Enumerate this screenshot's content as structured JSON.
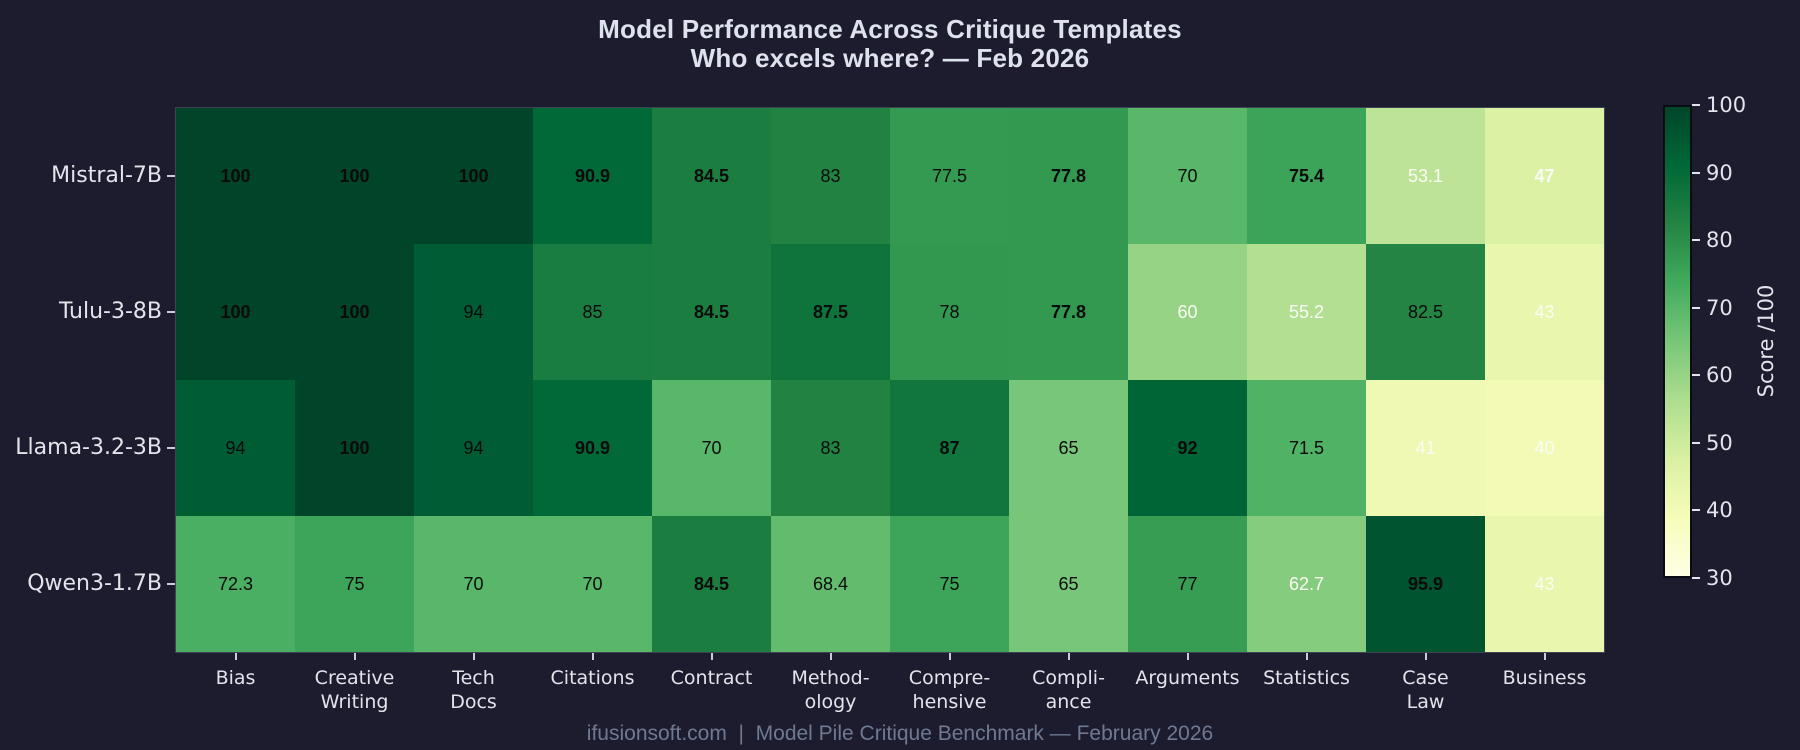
{
  "title": {
    "line1": "Model Performance Across Critique Templates",
    "line2": "Who excels where? — Feb 2026"
  },
  "footer": "ifusionsoft.com  |  Model Pile Critique Benchmark — February 2026",
  "chart_data": {
    "type": "heatmap",
    "title": "Model Performance Across Critique Templates",
    "subtitle": "Who excels where? — Feb 2026",
    "x_categories": [
      "Bias",
      "Creative\nWriting",
      "Tech\nDocs",
      "Citations",
      "Contract",
      "Method-\nology",
      "Compre-\nhensive",
      "Compli-\nance",
      "Arguments",
      "Statistics",
      "Case\nLaw",
      "Business"
    ],
    "y_categories": [
      "Mistral-7B",
      "Tulu-3-8B",
      "Llama-3.2-3B",
      "Qwen3-1.7B"
    ],
    "values": [
      [
        100,
        100,
        100,
        90.9,
        84.5,
        83,
        77.5,
        77.8,
        70,
        75.4,
        53.1,
        47
      ],
      [
        100,
        100,
        94,
        85,
        84.5,
        87.5,
        78,
        77.8,
        60,
        55.2,
        82.5,
        43
      ],
      [
        94,
        100,
        94,
        90.9,
        70,
        83,
        87,
        65,
        92,
        71.5,
        41,
        40
      ],
      [
        72.3,
        75,
        70,
        70,
        84.5,
        68.4,
        75,
        65,
        77,
        62.7,
        95.9,
        43
      ]
    ],
    "vmin": 30,
    "vmax": 100,
    "colormap": {
      "name": "YlGn",
      "stops": [
        "#ffffe5",
        "#f7fcb9",
        "#d9f0a3",
        "#addd8e",
        "#78c679",
        "#41ab5d",
        "#238443",
        "#006837",
        "#004529"
      ]
    },
    "colorbar": {
      "ticks": [
        100,
        90,
        80,
        70,
        60,
        50,
        40,
        30
      ],
      "label": "Score /100",
      "position": "right"
    },
    "annotation_rules": {
      "bold": "column-max",
      "white_text_below": 64
    },
    "grid": false,
    "legend": false
  },
  "theme": {
    "background": "#1c1c2e",
    "title_color": "#dee2ec",
    "axis_text_color": "#e1e4eb",
    "footer_color": "#6f7a92",
    "plot_border_color": "#3c4454",
    "cell_text_dark": "#0b0b0b",
    "cell_text_light": "#fbfcf6"
  }
}
